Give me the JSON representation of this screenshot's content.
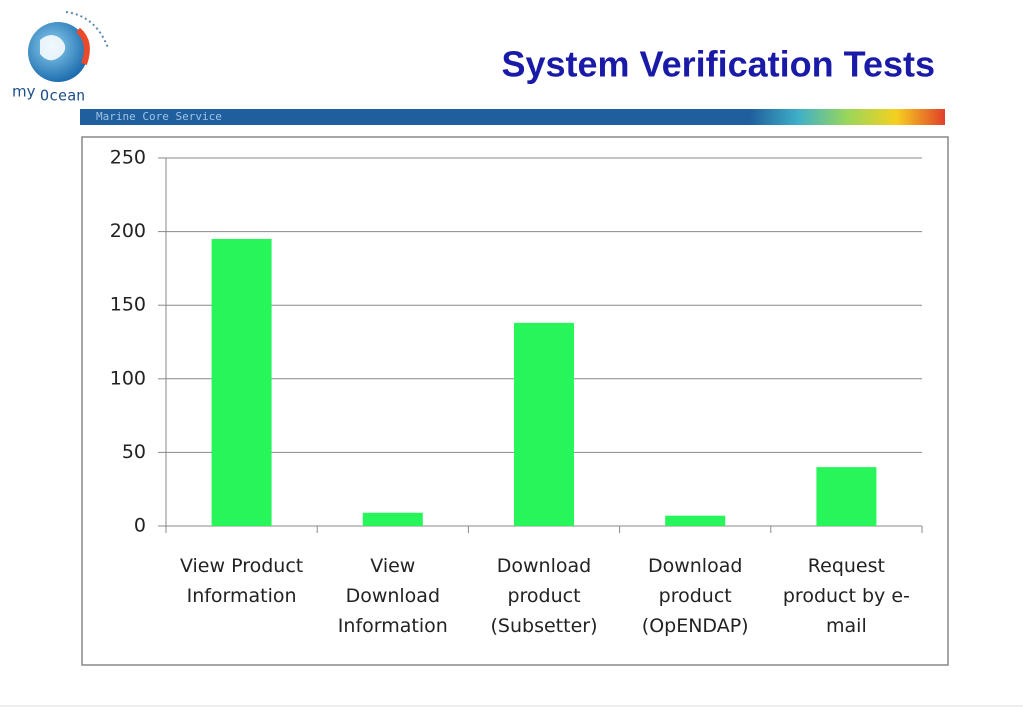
{
  "header": {
    "title": "System Verification Tests",
    "logo_prefix": "my",
    "logo_name": "Ocean",
    "band_text": "Marine Core Service"
  },
  "chart_data": {
    "type": "bar",
    "categories": [
      "View Product Information",
      "View Download Information",
      "Download product (Subsetter)",
      "Download product (OpENDAP)",
      "Request product by e-mail"
    ],
    "values": [
      195,
      9,
      138,
      7,
      40
    ],
    "color": "#28f55a",
    "ylim": [
      0,
      250
    ],
    "yticks": [
      0,
      50,
      100,
      150,
      200,
      250
    ],
    "grid": true
  }
}
